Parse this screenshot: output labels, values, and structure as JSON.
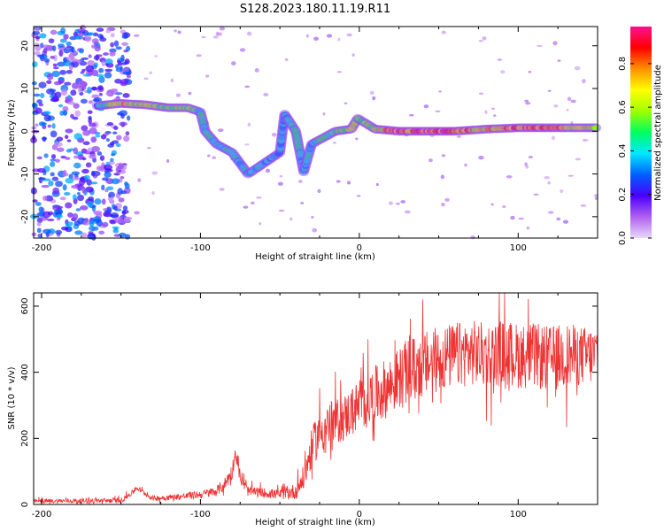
{
  "figure": {
    "title": "S128.2023.180.11.19.R11"
  },
  "chart_data": [
    {
      "type": "heatmap",
      "name": "spectrogram",
      "xlabel": "Height of straight line (km)",
      "ylabel": "Frequency (Hz)",
      "xlim": [
        -205,
        150
      ],
      "ylim": [
        -25,
        24.5
      ],
      "xticks": [
        "-200",
        "-100",
        "0",
        "100"
      ],
      "yticks": [
        "-20",
        "-10",
        "0",
        "10",
        "20"
      ],
      "colorbar": {
        "label": "Normalized spectral amplitude",
        "range": [
          0.0,
          0.97
        ],
        "ticks": [
          "0.0",
          "0.2",
          "0.4",
          "0.6",
          "0.8"
        ],
        "colormap": [
          "#e8d8f8",
          "#b060f0",
          "#4a00ff",
          "#0060ff",
          "#00e8ff",
          "#00ff60",
          "#a0ff00",
          "#ffff00",
          "#ff9000",
          "#ff0000",
          "#ff1090"
        ]
      },
      "noise_region_km": [
        -205,
        -145
      ],
      "ridge": [
        {
          "x": -165,
          "f": 6.0,
          "a": 0.35
        },
        {
          "x": -150,
          "f": 6.5,
          "a": 0.75
        },
        {
          "x": -135,
          "f": 6.2,
          "a": 0.6
        },
        {
          "x": -120,
          "f": 5.5,
          "a": 0.55
        },
        {
          "x": -108,
          "f": 5.5,
          "a": 0.6
        },
        {
          "x": -100,
          "f": 4.5,
          "a": 0.45
        },
        {
          "x": -97,
          "f": 0.0,
          "a": 0.45
        },
        {
          "x": -90,
          "f": -3.0,
          "a": 0.45
        },
        {
          "x": -80,
          "f": -5.0,
          "a": 0.4
        },
        {
          "x": -70,
          "f": -10.0,
          "a": 0.4
        },
        {
          "x": -50,
          "f": -5.0,
          "a": 0.35
        },
        {
          "x": -47,
          "f": 4.0,
          "a": 0.4
        },
        {
          "x": -40,
          "f": 0.0,
          "a": 0.45
        },
        {
          "x": -35,
          "f": -9.5,
          "a": 0.4
        },
        {
          "x": -30,
          "f": -3.0,
          "a": 0.4
        },
        {
          "x": -15,
          "f": 0.0,
          "a": 0.55
        },
        {
          "x": -5,
          "f": 0.5,
          "a": 0.6
        },
        {
          "x": -1,
          "f": 3.0,
          "a": 0.55
        },
        {
          "x": 10,
          "f": 0.5,
          "a": 0.6
        },
        {
          "x": 25,
          "f": 0.0,
          "a": 0.9
        },
        {
          "x": 40,
          "f": 0.0,
          "a": 0.9
        },
        {
          "x": 60,
          "f": 0.0,
          "a": 0.85
        },
        {
          "x": 80,
          "f": 0.5,
          "a": 0.7
        },
        {
          "x": 100,
          "f": 0.8,
          "a": 0.85
        },
        {
          "x": 120,
          "f": 0.8,
          "a": 0.8
        },
        {
          "x": 140,
          "f": 0.8,
          "a": 0.7
        },
        {
          "x": 150,
          "f": 0.8,
          "a": 0.6
        }
      ]
    },
    {
      "type": "line",
      "name": "snr",
      "xlabel": "Height of straight line (km)",
      "ylabel": "SNR (10 * v/v)",
      "xlim": [
        -205,
        150
      ],
      "ylim": [
        0,
        640
      ],
      "xticks": [
        "-200",
        "-100",
        "0",
        "100"
      ],
      "yticks": [
        "0",
        "200",
        "400",
        "600"
      ],
      "color": "#ee3333",
      "envelope": {
        "x": [
          -205,
          -150,
          -143,
          -140,
          -130,
          -110,
          -100,
          -90,
          -85,
          -80,
          -78,
          -75,
          -70,
          -60,
          -50,
          -40,
          -35,
          -30,
          -25,
          -20,
          -10,
          0,
          10,
          20,
          30,
          40,
          50,
          60,
          70,
          80,
          90,
          100,
          110,
          120,
          130,
          140,
          150
        ],
        "y": [
          10,
          12,
          35,
          50,
          18,
          25,
          30,
          40,
          60,
          100,
          160,
          80,
          40,
          35,
          30,
          40,
          80,
          170,
          220,
          240,
          260,
          300,
          330,
          360,
          400,
          420,
          440,
          450,
          460,
          450,
          460,
          450,
          450,
          440,
          450,
          450,
          450
        ],
        "noise": [
          6,
          8,
          8,
          8,
          8,
          10,
          12,
          15,
          20,
          25,
          20,
          20,
          15,
          15,
          15,
          25,
          40,
          60,
          70,
          70,
          70,
          80,
          90,
          90,
          100,
          100,
          100,
          100,
          100,
          100,
          100,
          100,
          100,
          100,
          100,
          90,
          90
        ]
      }
    }
  ]
}
